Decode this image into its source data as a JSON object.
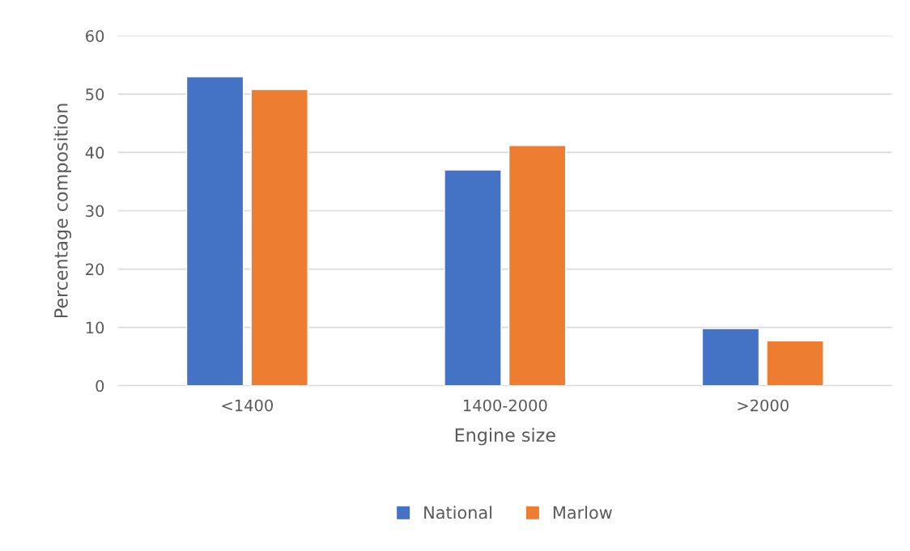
{
  "chart_data": {
    "type": "bar",
    "xlabel": "Engine size",
    "ylabel": "Percentage composition",
    "categories": [
      "<1400",
      "1400-2000",
      ">2000"
    ],
    "series": [
      {
        "name": "National",
        "color": "#4472c4",
        "values": [
          53,
          37,
          9.8
        ]
      },
      {
        "name": "Marlow",
        "color": "#ed7d31",
        "values": [
          50.8,
          41.2,
          7.7
        ]
      }
    ],
    "ylim": [
      0,
      60
    ],
    "yticks": [
      0,
      10,
      20,
      30,
      40,
      50,
      60
    ],
    "grid": "y",
    "legend": "bottom"
  }
}
